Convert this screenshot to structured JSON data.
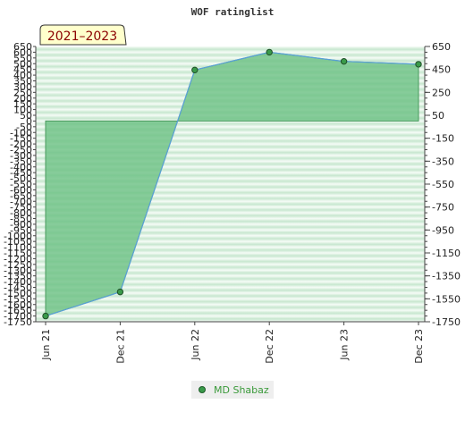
{
  "chart_data": {
    "type": "area",
    "title": "WOF ratinglist",
    "period_label": "2021–2023",
    "categories": [
      "Jun 21",
      "Dec 21",
      "Jun 22",
      "Dec 22",
      "Jun 23",
      "Dec 23"
    ],
    "series": [
      {
        "name": "MD Shabaz",
        "points": [
          {
            "x": "Jun 21",
            "y": -1700
          },
          {
            "x": "Dec 21",
            "y": -1490
          },
          {
            "x": "Jun 22",
            "y": 445
          },
          {
            "x": "Dec 22",
            "y": 600
          },
          {
            "x": "Jun 23",
            "y": 520
          },
          {
            "x": "Dec 23",
            "y": 495
          }
        ]
      }
    ],
    "ylim": [
      -1750,
      650
    ],
    "left_ticks": [
      "650",
      "600",
      "550",
      "500",
      "450",
      "400",
      "350",
      "300",
      "250",
      "200",
      "150",
      "100",
      "50",
      "0",
      "-50",
      "-100",
      "-150",
      "-200",
      "-250",
      "-300",
      "-350",
      "-400",
      "-450",
      "-500",
      "-550",
      "-600",
      "-650",
      "-700",
      "-750",
      "-800",
      "-850",
      "-900",
      "-950",
      "-1000",
      "-1050",
      "-1100",
      "-1150",
      "-1200",
      "-1250",
      "-1300",
      "-1350",
      "-1400",
      "-1450",
      "-1500",
      "-1550",
      "-1600",
      "-1650",
      "-1700",
      "-1750"
    ],
    "right_ticks": [
      "650",
      "450",
      "250",
      "50",
      "-150",
      "-350",
      "-550",
      "-750",
      "-950",
      "-1150",
      "-1350",
      "-1550",
      "-1750"
    ],
    "baseline": 0,
    "grid": true,
    "legend_position": "bottom-center",
    "colors": {
      "area_fill": "#6cc083",
      "line": "#5aa0d8",
      "marker": "#3a9a4a",
      "band_dark": "#c8e6cf",
      "band_light": "#f4fbf5",
      "legend_text": "#3a9a3a",
      "label_bg": "#ffffcc"
    }
  }
}
